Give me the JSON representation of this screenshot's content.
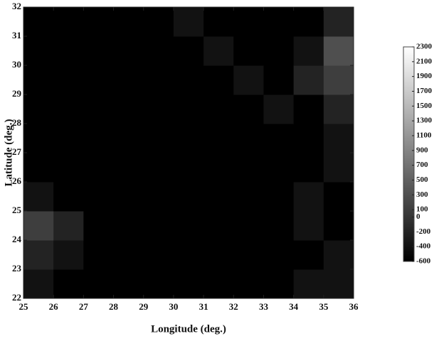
{
  "chart_data": {
    "type": "heatmap",
    "x_label": "Longitude (deg.)",
    "y_label": "Latitude (deg.)",
    "xlim": [
      25,
      36
    ],
    "ylim": [
      22,
      32
    ],
    "xticks": [
      25,
      26,
      27,
      28,
      29,
      30,
      31,
      32,
      33,
      34,
      35,
      36
    ],
    "yticks": [
      22,
      23,
      24,
      25,
      26,
      27,
      28,
      29,
      30,
      31,
      32
    ],
    "z": [
      [
        -400,
        -600,
        -600,
        -600,
        -600,
        -600,
        -600,
        -600,
        -600,
        -400,
        -400
      ],
      [
        -200,
        -400,
        -600,
        -600,
        -600,
        -600,
        -600,
        -600,
        -600,
        -600,
        -400
      ],
      [
        100,
        -200,
        -600,
        -600,
        -600,
        -600,
        -600,
        -600,
        -600,
        -400,
        -600
      ],
      [
        -400,
        -600,
        -600,
        -600,
        -600,
        -600,
        -600,
        -600,
        -600,
        -400,
        -600
      ],
      [
        -600,
        -600,
        -600,
        -600,
        -600,
        -600,
        -600,
        -600,
        -600,
        -600,
        -400
      ],
      [
        -600,
        -600,
        -600,
        -600,
        -600,
        -600,
        -600,
        -600,
        -600,
        -600,
        -400
      ],
      [
        -600,
        -600,
        -600,
        -600,
        -600,
        -600,
        -600,
        -600,
        -400,
        -600,
        -200
      ],
      [
        -600,
        -600,
        -600,
        -600,
        -600,
        -600,
        -600,
        -400,
        -600,
        -200,
        100
      ],
      [
        -600,
        -600,
        -600,
        -600,
        -600,
        -600,
        -400,
        -600,
        -600,
        -400,
        300
      ],
      [
        -600,
        -600,
        -600,
        -600,
        -600,
        -400,
        -600,
        -600,
        -600,
        -600,
        -200
      ]
    ],
    "colormap": [
      "#000000",
      "#ffffff"
    ],
    "clim": [
      -600,
      2300
    ],
    "colorbar_ticks": [
      2300,
      2100,
      1900,
      1700,
      1500,
      1300,
      1100,
      900,
      700,
      500,
      300,
      100,
      0,
      -200,
      -400,
      -600
    ]
  }
}
